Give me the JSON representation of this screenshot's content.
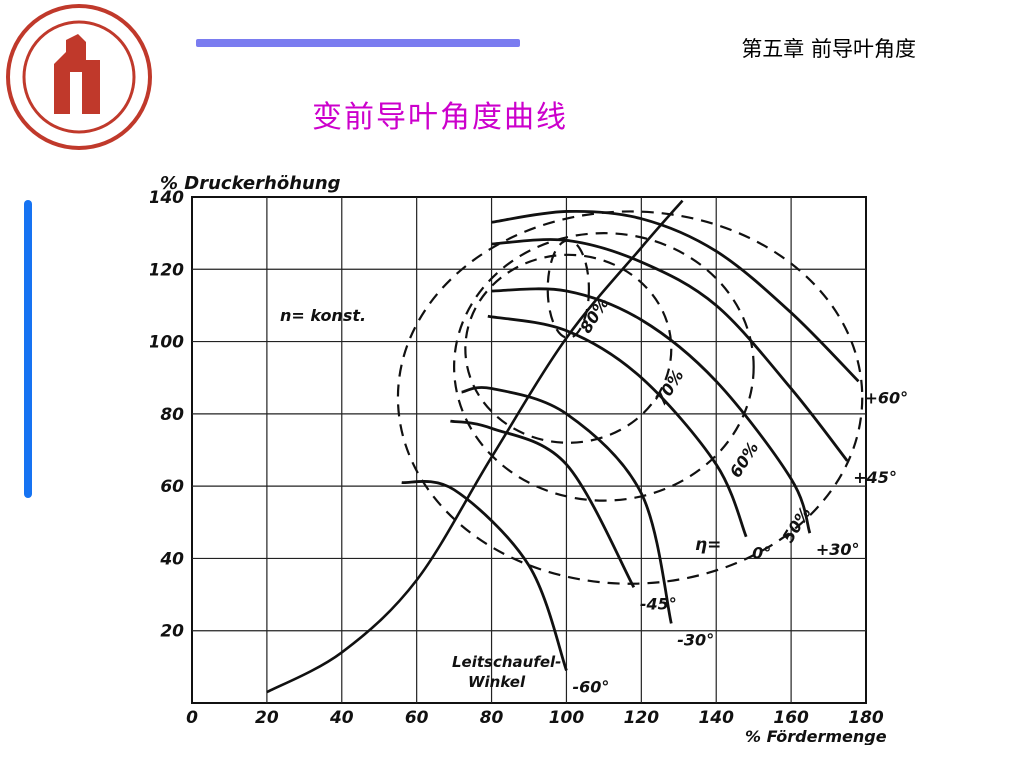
{
  "header": {
    "chapter": "第五章 前导叶角度",
    "title": "变前导叶角度曲线"
  },
  "colors": {
    "accent_bar": "#7a7cf0",
    "side_bar": "#1673f2",
    "title": "#cc00cc",
    "logo": "#c0392b"
  },
  "logo": {
    "icon": "university-seal-icon"
  },
  "chart_data": {
    "type": "line",
    "title": "",
    "xlabel": "% Fördermenge",
    "ylabel": "% Druckerhöhung",
    "xlim": [
      0,
      180
    ],
    "ylim": [
      0,
      140
    ],
    "xticks": [
      "0",
      "20",
      "40",
      "60",
      "80",
      "100",
      "120",
      "140",
      "160",
      "180"
    ],
    "yticks": [
      "20",
      "40",
      "60",
      "80",
      "100",
      "120",
      "140"
    ],
    "grid": true,
    "annotations": {
      "speed": "n= konst.",
      "eta": "η=",
      "angle_caption": "Leitschaufel-\nWinkel"
    },
    "series": [
      {
        "name": "+60°",
        "x": [
          80,
          100,
          120,
          140,
          160,
          178
        ],
        "y": [
          133,
          136,
          134,
          125,
          108,
          89
        ]
      },
      {
        "name": "+45°",
        "x": [
          80,
          100,
          120,
          140,
          160,
          175
        ],
        "y": [
          127,
          128,
          122,
          110,
          87,
          67
        ]
      },
      {
        "name": "+30°",
        "x": [
          80,
          100,
          120,
          140,
          160,
          165
        ],
        "y": [
          114,
          114,
          106,
          89,
          62,
          47
        ]
      },
      {
        "name": "0°",
        "x": [
          79,
          100,
          120,
          140,
          148
        ],
        "y": [
          107,
          103,
          90,
          66,
          46
        ]
      },
      {
        "name": "-30°",
        "x": [
          72,
          80,
          100,
          120,
          128
        ],
        "y": [
          86,
          87,
          80,
          58,
          22
        ]
      },
      {
        "name": "-45°",
        "x": [
          69,
          80,
          100,
          118
        ],
        "y": [
          78,
          76,
          66,
          32
        ]
      },
      {
        "name": "-60°",
        "x": [
          56,
          70,
          90,
          100
        ],
        "y": [
          61,
          59,
          38,
          9
        ]
      }
    ],
    "system_curve": {
      "x": [
        20,
        40,
        60,
        80,
        100,
        120,
        131
      ],
      "y": [
        3,
        14,
        34,
        68,
        101,
        126,
        139
      ]
    },
    "efficiency_contours": [
      {
        "label": "80%",
        "x": [
          95,
          106
        ],
        "y": [
          101,
          128
        ]
      },
      {
        "label": "70%",
        "x": [
          73,
          128
        ],
        "y": [
          72,
          124
        ]
      },
      {
        "label": "60%",
        "x": [
          70,
          150
        ],
        "y": [
          56,
          130
        ]
      },
      {
        "label": "50%",
        "x": [
          55,
          179
        ],
        "y": [
          33,
          136
        ]
      }
    ],
    "series_labels": [
      "+60°",
      "+45°",
      "+30°",
      "0°",
      "-30°",
      "-45°",
      "-60°"
    ]
  }
}
